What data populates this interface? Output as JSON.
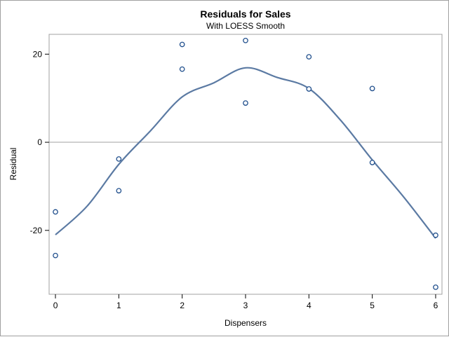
{
  "chart_data": {
    "type": "scatter",
    "title": "Residuals for Sales",
    "subtitle": "With LOESS Smooth",
    "xlabel": "Dispensers",
    "ylabel": "Residual",
    "xlim": [
      -0.1,
      6.1
    ],
    "ylim": [
      -34.5,
      24.5
    ],
    "x_ticks": [
      0,
      1,
      2,
      3,
      4,
      5,
      6
    ],
    "y_ticks": [
      -20,
      0,
      20
    ],
    "reference_line_y": 0,
    "grid": false,
    "legend": "none",
    "colors": {
      "points": "#1f4e8c",
      "smooth": "#5b7aa3",
      "reference": "#a0a0a0",
      "frame": "#a0a0a0"
    },
    "points": [
      {
        "x": 0,
        "y": -15.8
      },
      {
        "x": 0,
        "y": -25.7
      },
      {
        "x": 1,
        "y": -3.8
      },
      {
        "x": 1,
        "y": -11.0
      },
      {
        "x": 2,
        "y": 22.2
      },
      {
        "x": 2,
        "y": 16.6
      },
      {
        "x": 3,
        "y": 23.1
      },
      {
        "x": 3,
        "y": 8.9
      },
      {
        "x": 4,
        "y": 19.4
      },
      {
        "x": 4,
        "y": 12.1
      },
      {
        "x": 5,
        "y": 12.2
      },
      {
        "x": 5,
        "y": -4.6
      },
      {
        "x": 6,
        "y": -21.1
      },
      {
        "x": 6,
        "y": -32.9
      }
    ],
    "smooth": [
      {
        "x": 0.0,
        "y": -21.0
      },
      {
        "x": 0.5,
        "y": -14.5
      },
      {
        "x": 1.0,
        "y": -5.0
      },
      {
        "x": 1.5,
        "y": 2.6
      },
      {
        "x": 2.0,
        "y": 10.3
      },
      {
        "x": 2.5,
        "y": 13.5
      },
      {
        "x": 3.0,
        "y": 16.9
      },
      {
        "x": 3.5,
        "y": 14.7
      },
      {
        "x": 4.0,
        "y": 12.2
      },
      {
        "x": 4.5,
        "y": 5.0
      },
      {
        "x": 5.0,
        "y": -4.0
      },
      {
        "x": 5.5,
        "y": -12.5
      },
      {
        "x": 6.0,
        "y": -21.8
      }
    ]
  }
}
